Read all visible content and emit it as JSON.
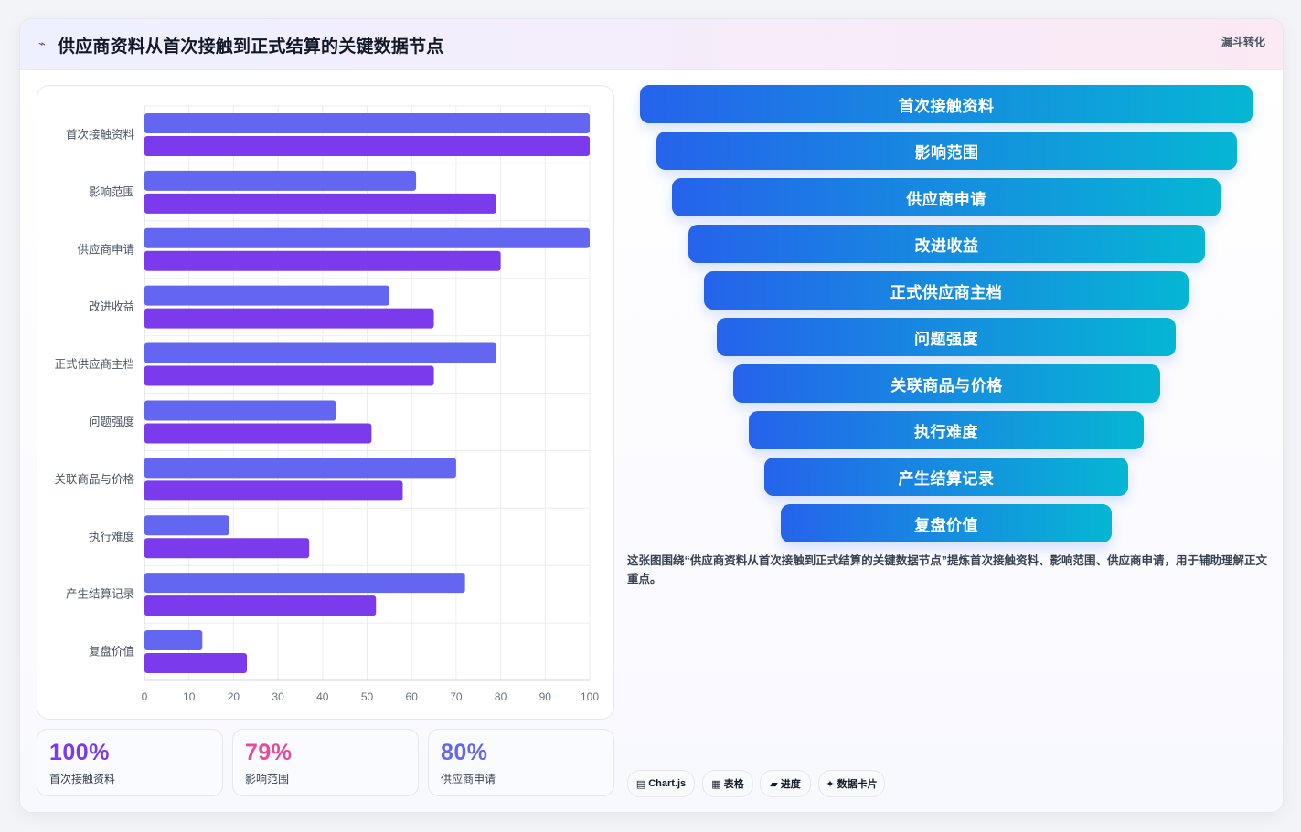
{
  "header": {
    "title": "供应商资料从首次接触到正式结算的关键数据节点",
    "tag": "漏斗转化"
  },
  "chart_data": {
    "type": "bar",
    "orientation": "horizontal",
    "categories": [
      "首次接触资料",
      "影响范围",
      "供应商申请",
      "改进收益",
      "正式供应商主档",
      "问题强度",
      "关联商品与价格",
      "执行难度",
      "产生结算记录",
      "复盘价值"
    ],
    "series": [
      {
        "color": "#6366f1",
        "values": [
          100,
          61,
          100,
          55,
          79,
          43,
          70,
          19,
          72,
          13
        ]
      },
      {
        "color": "#7c3aed",
        "values": [
          100,
          79,
          80,
          65,
          65,
          51,
          58,
          37,
          52,
          23
        ]
      }
    ],
    "xlim": [
      0,
      100
    ],
    "xticks": [
      0,
      10,
      20,
      30,
      40,
      50,
      60,
      70,
      80,
      90,
      100
    ],
    "grid": true
  },
  "kpis": [
    {
      "value": "100%",
      "label": "首次接触资料",
      "color": "#7c3aed"
    },
    {
      "value": "79%",
      "label": "影响范围",
      "color": "#ec4899"
    },
    {
      "value": "80%",
      "label": "供应商申请",
      "color": "#6366f1"
    }
  ],
  "funnel": {
    "steps": [
      "首次接触资料",
      "影响范围",
      "供应商申请",
      "改进收益",
      "正式供应商主档",
      "问题强度",
      "关联商品与价格",
      "执行难度",
      "产生结算记录",
      "复盘价值"
    ]
  },
  "description": "这张图围绕“供应商资料从首次接触到正式结算的关键数据节点”提炼首次接触资料、影响范围、供应商申请，用于辅助理解正文重点。",
  "pills": [
    {
      "icon": "▤",
      "label": "Chart.js",
      "icon_name": "chart-icon"
    },
    {
      "icon": "▦",
      "label": "表格",
      "icon_name": "table-icon"
    },
    {
      "icon": "▰",
      "label": "进度",
      "icon_name": "progress-icon"
    },
    {
      "icon": "✦",
      "label": "数据卡片",
      "icon_name": "sparkle-icon"
    }
  ]
}
